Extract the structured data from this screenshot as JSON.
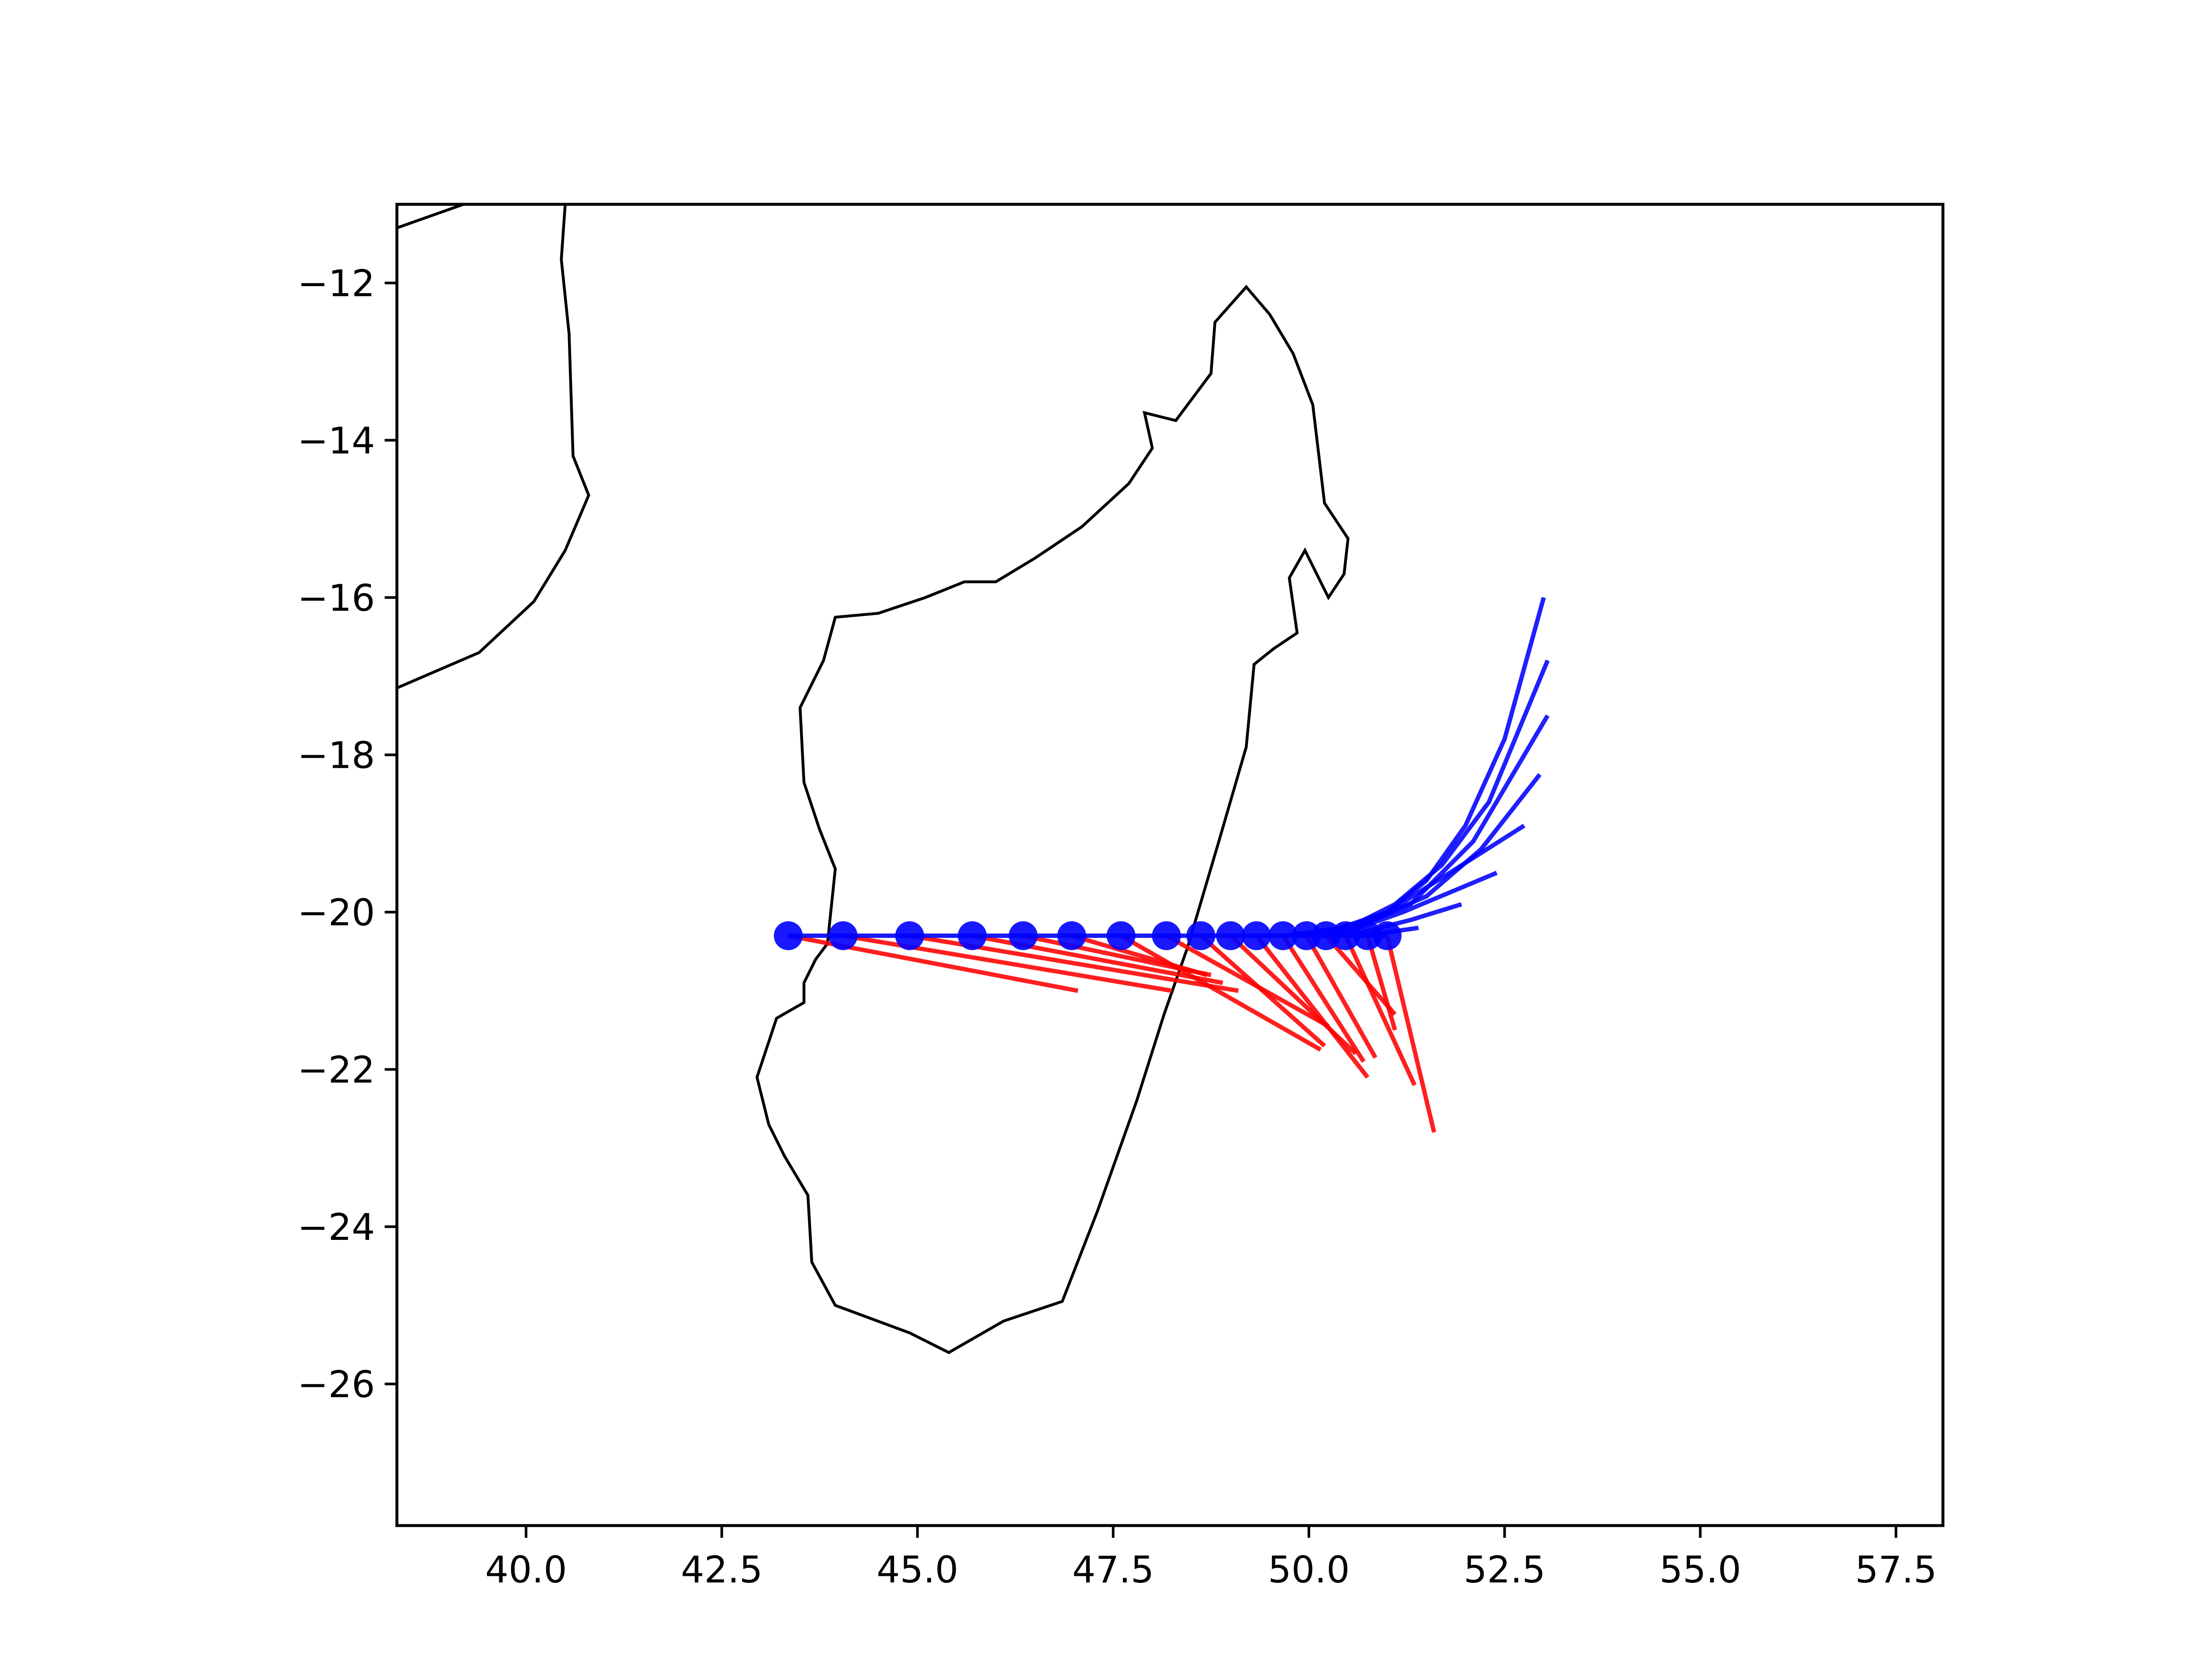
{
  "chart_data": {
    "type": "line",
    "title": "",
    "xlabel": "",
    "ylabel": "",
    "xlim": [
      38.35,
      58.1
    ],
    "ylim": [
      -27.8,
      -11.0
    ],
    "grid": false,
    "x_ticks": [
      40.0,
      42.5,
      45.0,
      47.5,
      50.0,
      52.5,
      55.0,
      57.5
    ],
    "y_ticks": [
      -12,
      -14,
      -16,
      -18,
      -20,
      -22,
      -24,
      -26
    ],
    "x_tick_labels": [
      "40.0",
      "42.5",
      "45.0",
      "47.5",
      "50.0",
      "52.5",
      "55.0",
      "57.5"
    ],
    "y_tick_labels": [
      "−12",
      "−14",
      "−16",
      "−18",
      "−20",
      "−22",
      "−24",
      "−26"
    ],
    "colors": {
      "track": "#0000ff",
      "forecast_blue": "#0000ff",
      "forecast_red": "#ff0000",
      "coast": "#000000"
    },
    "track_points": [
      [
        43.35,
        -20.3
      ],
      [
        44.05,
        -20.3
      ],
      [
        44.9,
        -20.3
      ],
      [
        45.7,
        -20.3
      ],
      [
        46.35,
        -20.3
      ],
      [
        46.97,
        -20.3
      ],
      [
        47.6,
        -20.3
      ],
      [
        48.18,
        -20.3
      ],
      [
        48.62,
        -20.3
      ],
      [
        49.0,
        -20.3
      ],
      [
        49.33,
        -20.3
      ],
      [
        49.67,
        -20.3
      ],
      [
        49.97,
        -20.3
      ],
      [
        50.22,
        -20.3
      ],
      [
        50.47,
        -20.3
      ],
      [
        50.75,
        -20.3
      ],
      [
        51.0,
        -20.3
      ]
    ],
    "blue_forecasts": [
      [
        [
          49.7,
          -20.3
        ],
        [
          50.4,
          -20.2
        ],
        [
          51.0,
          -20.0
        ],
        [
          51.5,
          -19.6
        ],
        [
          52.0,
          -18.9
        ],
        [
          52.5,
          -17.8
        ],
        [
          53.0,
          -16.0
        ]
      ],
      [
        [
          49.8,
          -20.3
        ],
        [
          50.5,
          -20.2
        ],
        [
          51.1,
          -19.9
        ],
        [
          51.7,
          -19.4
        ],
        [
          52.3,
          -18.6
        ],
        [
          53.05,
          -16.8
        ]
      ],
      [
        [
          49.9,
          -20.3
        ],
        [
          50.6,
          -20.2
        ],
        [
          51.3,
          -19.9
        ],
        [
          52.1,
          -19.1
        ],
        [
          53.05,
          -17.5
        ]
      ],
      [
        [
          50.0,
          -20.3
        ],
        [
          50.8,
          -20.1
        ],
        [
          51.5,
          -19.8
        ],
        [
          52.2,
          -19.2
        ],
        [
          52.95,
          -18.25
        ]
      ],
      [
        [
          50.2,
          -20.3
        ],
        [
          51.0,
          -20.0
        ],
        [
          51.8,
          -19.5
        ],
        [
          52.75,
          -18.9
        ]
      ],
      [
        [
          50.35,
          -20.3
        ],
        [
          51.2,
          -20.0
        ],
        [
          52.4,
          -19.5
        ]
      ],
      [
        [
          50.5,
          -20.3
        ],
        [
          51.3,
          -20.1
        ],
        [
          51.95,
          -19.9
        ]
      ],
      [
        [
          50.7,
          -20.3
        ],
        [
          51.4,
          -20.2
        ]
      ]
    ],
    "red_forecasts": [
      [
        [
          43.35,
          -20.3
        ],
        [
          47.05,
          -21.0
        ]
      ],
      [
        [
          44.05,
          -20.3
        ],
        [
          48.25,
          -21.0
        ]
      ],
      [
        [
          44.9,
          -20.3
        ],
        [
          49.1,
          -21.0
        ]
      ],
      [
        [
          45.7,
          -20.3
        ],
        [
          48.9,
          -20.9
        ]
      ],
      [
        [
          46.35,
          -20.3
        ],
        [
          48.75,
          -20.8
        ]
      ],
      [
        [
          46.97,
          -20.3
        ],
        [
          48.7,
          -20.8
        ]
      ],
      [
        [
          47.6,
          -20.3
        ],
        [
          50.15,
          -21.75
        ]
      ],
      [
        [
          48.18,
          -20.3
        ],
        [
          50.25,
          -21.45
        ]
      ],
      [
        [
          48.62,
          -20.3
        ],
        [
          50.2,
          -21.7
        ]
      ],
      [
        [
          49.0,
          -20.3
        ],
        [
          50.6,
          -21.8
        ]
      ],
      [
        [
          49.33,
          -20.3
        ],
        [
          50.75,
          -22.1
        ]
      ],
      [
        [
          49.67,
          -20.3
        ],
        [
          50.7,
          -21.9
        ]
      ],
      [
        [
          49.97,
          -20.3
        ],
        [
          50.85,
          -21.85
        ]
      ],
      [
        [
          50.22,
          -20.3
        ],
        [
          51.1,
          -21.3
        ]
      ],
      [
        [
          50.47,
          -20.3
        ],
        [
          51.35,
          -22.2
        ]
      ],
      [
        [
          50.75,
          -20.3
        ],
        [
          51.1,
          -21.5
        ]
      ],
      [
        [
          51.0,
          -20.3
        ],
        [
          51.6,
          -22.8
        ]
      ]
    ],
    "coastlines": [
      [
        [
          48.85,
          -19.1
        ],
        [
          49.2,
          -17.9
        ],
        [
          49.3,
          -16.85
        ],
        [
          49.55,
          -16.65
        ],
        [
          49.85,
          -16.45
        ],
        [
          49.75,
          -15.75
        ],
        [
          49.95,
          -15.4
        ],
        [
          50.25,
          -16.0
        ],
        [
          50.45,
          -15.7
        ],
        [
          50.5,
          -15.25
        ],
        [
          50.2,
          -14.8
        ],
        [
          50.05,
          -13.55
        ],
        [
          49.8,
          -12.9
        ],
        [
          49.5,
          -12.4
        ],
        [
          49.2,
          -12.05
        ],
        [
          48.8,
          -12.5
        ],
        [
          48.75,
          -13.15
        ],
        [
          48.3,
          -13.75
        ],
        [
          47.9,
          -13.65
        ],
        [
          48.0,
          -14.1
        ],
        [
          47.7,
          -14.55
        ],
        [
          47.1,
          -15.1
        ],
        [
          46.5,
          -15.5
        ],
        [
          46.0,
          -15.8
        ],
        [
          45.6,
          -15.8
        ],
        [
          45.1,
          -16.0
        ],
        [
          44.5,
          -16.2
        ],
        [
          43.95,
          -16.25
        ],
        [
          43.8,
          -16.8
        ],
        [
          43.5,
          -17.4
        ],
        [
          43.55,
          -18.35
        ],
        [
          43.75,
          -18.95
        ],
        [
          43.95,
          -19.45
        ],
        [
          43.85,
          -20.4
        ],
        [
          43.7,
          -20.6
        ],
        [
          43.55,
          -20.9
        ],
        [
          43.55,
          -21.15
        ],
        [
          43.2,
          -21.35
        ],
        [
          42.95,
          -22.1
        ],
        [
          43.1,
          -22.7
        ],
        [
          43.3,
          -23.1
        ],
        [
          43.6,
          -23.6
        ],
        [
          43.65,
          -24.45
        ],
        [
          43.95,
          -25.0
        ],
        [
          44.9,
          -25.35
        ],
        [
          45.4,
          -25.6
        ],
        [
          46.1,
          -25.2
        ],
        [
          46.85,
          -24.95
        ],
        [
          47.3,
          -23.8
        ],
        [
          47.8,
          -22.4
        ],
        [
          48.15,
          -21.3
        ],
        [
          48.45,
          -20.45
        ],
        [
          48.85,
          -19.1
        ]
      ],
      [
        [
          38.35,
          -17.15
        ],
        [
          39.4,
          -16.7
        ],
        [
          40.1,
          -16.05
        ],
        [
          40.5,
          -15.4
        ],
        [
          40.8,
          -14.7
        ],
        [
          40.6,
          -14.2
        ],
        [
          40.55,
          -12.65
        ],
        [
          40.45,
          -11.7
        ],
        [
          40.5,
          -11.0
        ]
      ],
      [
        [
          38.35,
          -11.3
        ],
        [
          39.2,
          -11.0
        ]
      ]
    ]
  }
}
